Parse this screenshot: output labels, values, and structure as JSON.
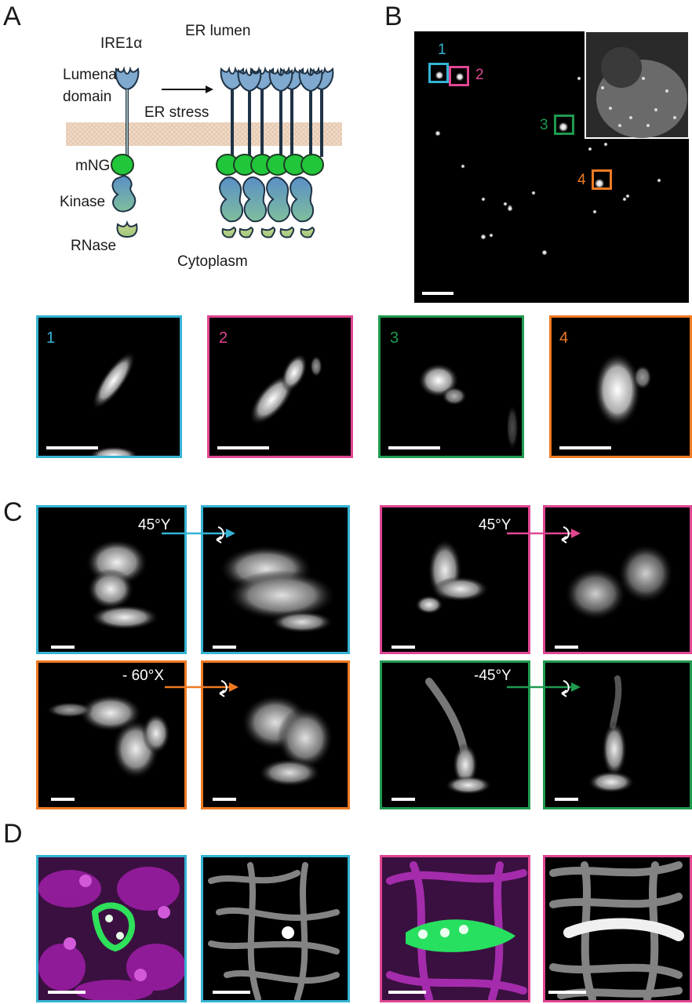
{
  "panels": {
    "A": "A",
    "B": "B",
    "C": "C",
    "D": "D"
  },
  "diagram": {
    "protein": "IRE1α",
    "er_lumen": "ER lumen",
    "lumenal_domain_1": "Lumenal",
    "lumenal_domain_2": "domain",
    "er_stress": "ER stress",
    "mng": "mNG",
    "kinase": "Kinase",
    "rnase": "RNase",
    "cytoplasm": "Cytoplasm"
  },
  "roi_labels": [
    "1",
    "2",
    "3",
    "4"
  ],
  "zoom_labels": [
    "1",
    "2",
    "3",
    "4"
  ],
  "rotations": {
    "cyan": "45°Y",
    "magenta": "45°Y",
    "orange": "- 60°X",
    "green": "-45°Y"
  },
  "colors": {
    "cyan": "#35b3d3",
    "magenta": "#e04692",
    "green": "#1f9a50",
    "orange": "#ef7a22",
    "membrane": "#efd9c6",
    "lumenal": "#7fa9cf",
    "mng": "#22c63a",
    "kinase": "#6b9bc9"
  }
}
